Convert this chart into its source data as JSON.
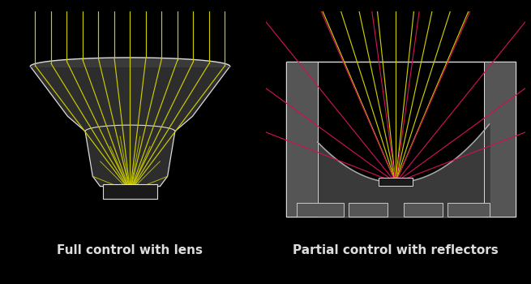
{
  "bg_color": "#000000",
  "title_left": "Full control with lens",
  "title_right": "Partial control with reflectors",
  "title_color": "#ffffff",
  "title_fontsize": 11,
  "yellow": "#cccc00",
  "pink": "#cc1155",
  "white": "#dddddd",
  "gray_body": "#2d2d2d",
  "gray_wall": "#555555",
  "gray_outline": "#aaaaaa"
}
